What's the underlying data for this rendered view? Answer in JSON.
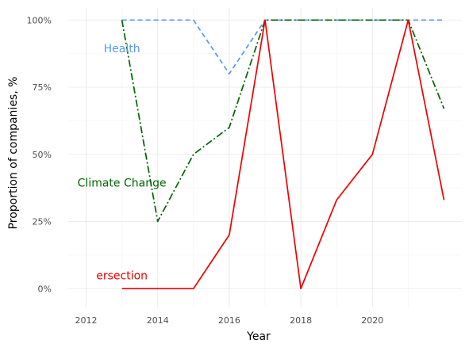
{
  "chart_data": {
    "type": "line",
    "xlabel": "Year",
    "ylabel": "Proportion of companies, %",
    "x_ticks": [
      2012,
      2014,
      2016,
      2018,
      2020
    ],
    "y_ticks": [
      0,
      25,
      50,
      75,
      100
    ],
    "y_tick_labels": [
      "0%",
      "25%",
      "50%",
      "75%",
      "100%"
    ],
    "xlim": [
      2011.5,
      2022.5
    ],
    "ylim": [
      -7,
      104.5
    ],
    "grid": true,
    "legend": "none",
    "series": [
      {
        "name": "Health",
        "color": "#5599ee",
        "dash": "dashed",
        "x": [
          2013,
          2014,
          2015,
          2016,
          2017,
          2018,
          2019,
          2020,
          2021,
          2022
        ],
        "values": [
          100,
          100,
          100,
          80,
          100,
          100,
          100,
          100,
          100,
          100
        ],
        "label_year": 2013,
        "label_value": 89.5
      },
      {
        "name": "Climate Change",
        "color": "#006400",
        "dash": "dashdot",
        "x": [
          2013,
          2014,
          2015,
          2016,
          2017,
          2018,
          2019,
          2020,
          2021,
          2022
        ],
        "values": [
          100,
          25,
          50,
          60,
          100,
          100,
          100,
          100,
          100,
          67
        ],
        "label_year": 2013,
        "label_value": 39.5
      },
      {
        "name": "ersection",
        "color": "#ee0000",
        "dash": "solid",
        "x": [
          2013,
          2014,
          2015,
          2016,
          2017,
          2018,
          2019,
          2020,
          2021,
          2022
        ],
        "values": [
          0,
          0,
          0,
          20,
          100,
          0,
          33,
          50,
          100,
          33
        ],
        "label_year": 2013,
        "label_value": 5
      }
    ]
  }
}
